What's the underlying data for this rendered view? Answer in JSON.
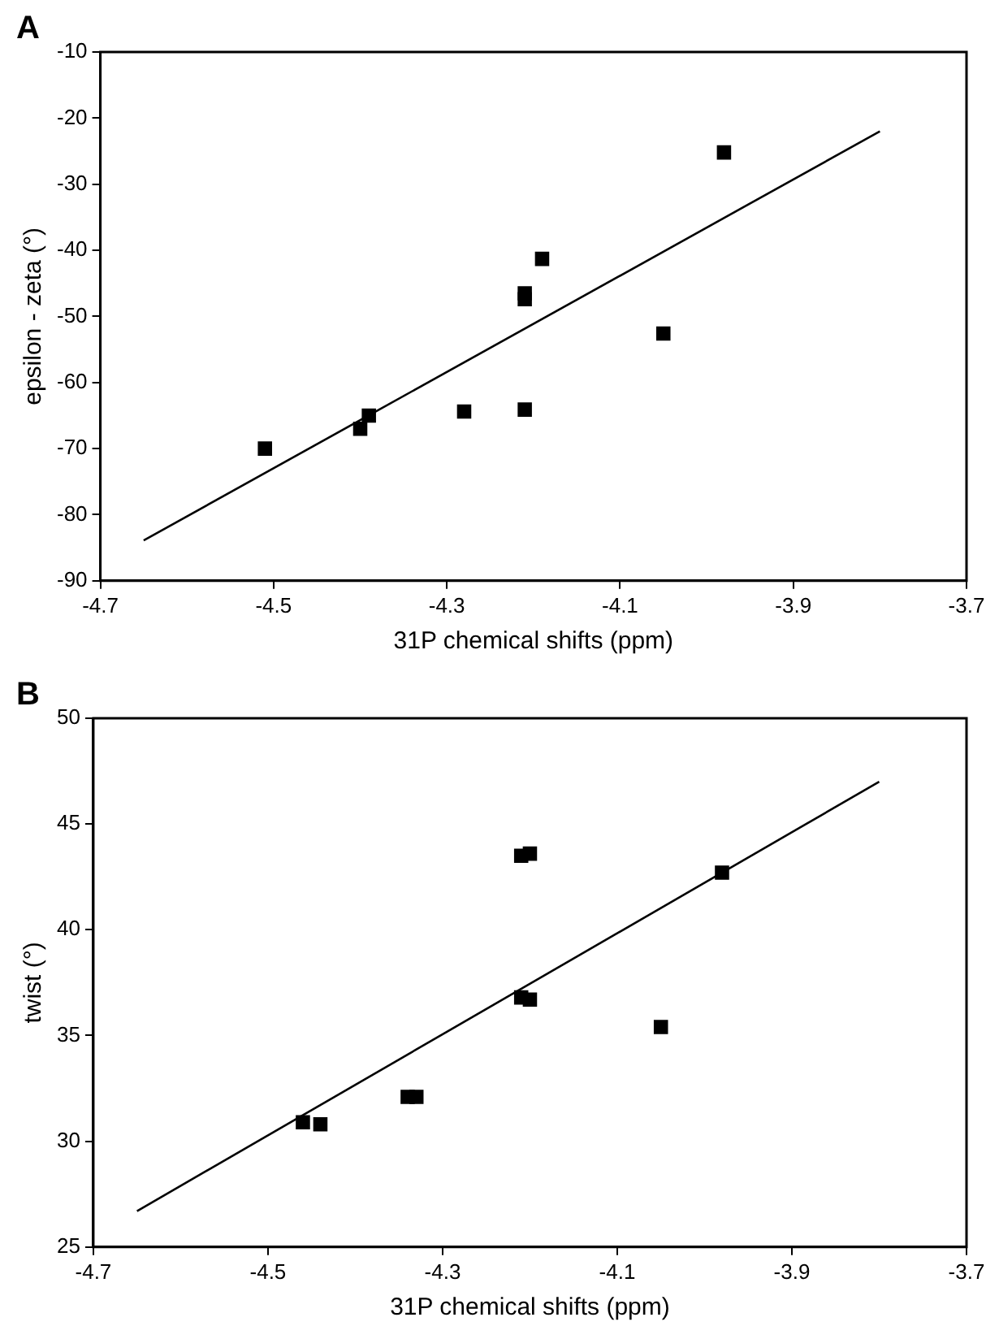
{
  "chart_data": [
    {
      "type": "scatter",
      "title": "A",
      "xlabel": "31P chemical shifts (ppm)",
      "ylabel": "epsilon - zeta (°)",
      "xlim": [
        -4.7,
        -3.7
      ],
      "xticks": [
        -4.7,
        -4.5,
        -4.3,
        -4.1,
        -3.9,
        -3.7
      ],
      "ylim": [
        -90,
        -10
      ],
      "yticks": [
        -90,
        -80,
        -70,
        -60,
        -50,
        -40,
        -30,
        -20,
        -10
      ],
      "grid": false,
      "legend": false,
      "series": [
        {
          "color": "#000000",
          "marker": "square",
          "x": [
            -4.51,
            -4.4,
            -4.39,
            -4.28,
            -4.21,
            -4.21,
            -4.21,
            -4.19,
            -4.05,
            -3.98
          ],
          "values": [
            -70,
            -67,
            -65,
            -64.4,
            -64.1,
            -46.5,
            -47.4,
            -41.3,
            -52.6,
            -25.2
          ]
        },
        {
          "type": "line",
          "color": "#000000",
          "marker": "none",
          "x": [
            -4.65,
            -3.8
          ],
          "values": [
            -83.9,
            -22
          ]
        }
      ]
    },
    {
      "type": "scatter",
      "title": "B",
      "xlabel": "31P chemical shifts (ppm)",
      "ylabel": "twist (°)",
      "xlim": [
        -4.7,
        -3.7
      ],
      "xticks": [
        -4.7,
        -4.5,
        -4.3,
        -4.1,
        -3.9,
        -3.7
      ],
      "ylim": [
        25,
        50
      ],
      "yticks": [
        25,
        30,
        35,
        40,
        45,
        50
      ],
      "grid": false,
      "legend": false,
      "series": [
        {
          "color": "#000000",
          "marker": "square",
          "x": [
            -4.46,
            -4.44,
            -4.34,
            -4.33,
            -4.21,
            -4.2,
            -4.21,
            -4.2,
            -4.05,
            -3.98
          ],
          "values": [
            30.9,
            30.8,
            32.1,
            32.1,
            43.5,
            43.6,
            36.8,
            36.7,
            35.4,
            42.7
          ]
        },
        {
          "type": "line",
          "color": "#000000",
          "marker": "none",
          "x": [
            -4.65,
            -3.8
          ],
          "values": [
            26.7,
            47
          ]
        }
      ]
    }
  ]
}
